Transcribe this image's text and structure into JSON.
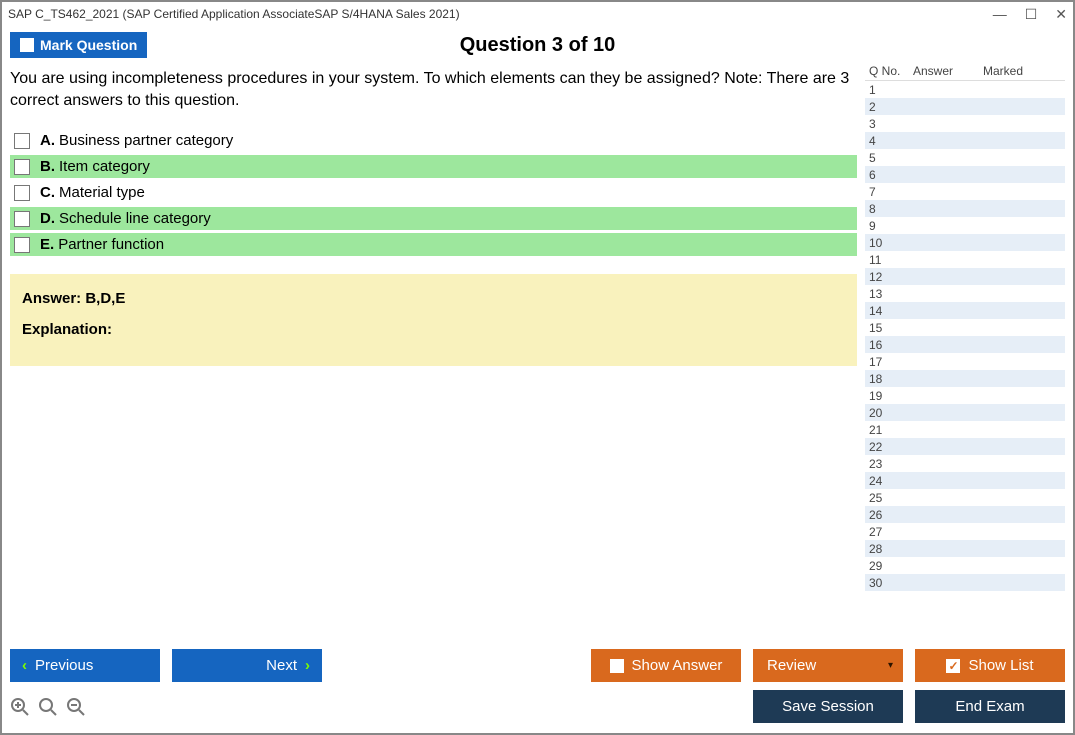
{
  "window": {
    "title": "SAP C_TS462_2021 (SAP Certified Application AssociateSAP S/4HANA Sales 2021)"
  },
  "header": {
    "mark_question_label": "Mark Question",
    "question_counter": "Question 3 of 10"
  },
  "question": {
    "text": "You are using incompleteness procedures in your system. To which elements can they be assigned? Note: There are 3 correct answers to this question."
  },
  "choices": [
    {
      "letter": "A.",
      "text": "Business partner category",
      "correct": false
    },
    {
      "letter": "B.",
      "text": "Item category",
      "correct": true
    },
    {
      "letter": "C.",
      "text": "Material type",
      "correct": false
    },
    {
      "letter": "D.",
      "text": "Schedule line category",
      "correct": true
    },
    {
      "letter": "E.",
      "text": "Partner function",
      "correct": true
    }
  ],
  "answer_panel": {
    "answer_label": "Answer: B,D,E",
    "explanation_label": "Explanation:"
  },
  "sidebar": {
    "col_qno": "Q No.",
    "col_answer": "Answer",
    "col_marked": "Marked",
    "row_count": 30
  },
  "footer": {
    "previous": "Previous",
    "next": "Next",
    "show_answer": "Show Answer",
    "review": "Review",
    "show_list": "Show List",
    "save_session": "Save Session",
    "end_exam": "End Exam"
  },
  "colors": {
    "blue": "#1565c0",
    "orange": "#d9691e",
    "dark": "#1e3a55",
    "correct_bg": "#9de79d",
    "answer_bg": "#f9f2bd",
    "stripe": "#e6eef7"
  }
}
